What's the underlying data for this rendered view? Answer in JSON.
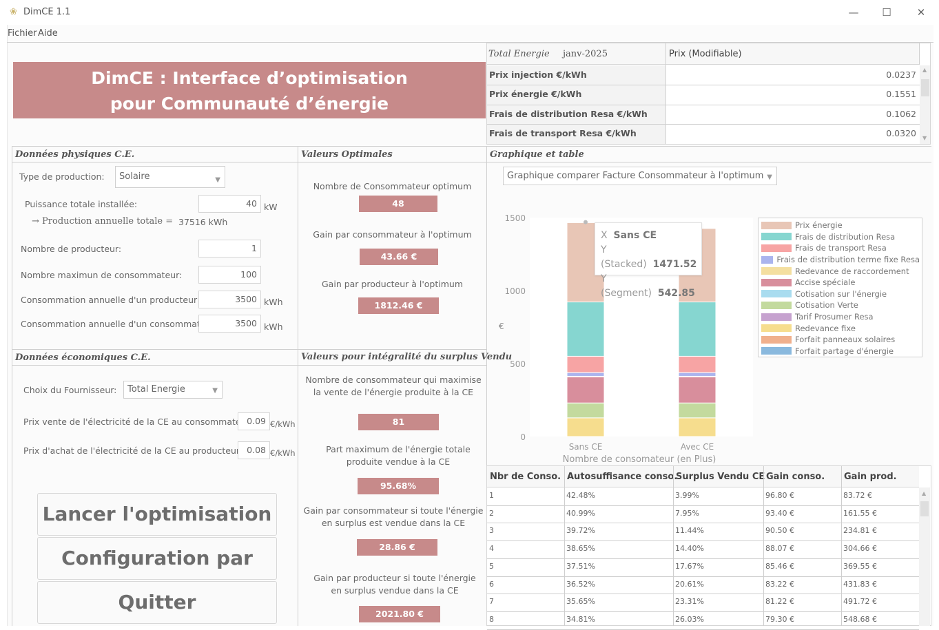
{
  "window": {
    "title": "DimCE 1.1",
    "minimize": "—",
    "maximize": "☐",
    "close": "✕"
  },
  "menu": {
    "file": "Fichier",
    "help": "Aide"
  },
  "banner": {
    "line1": "DimCE : Interface d’optimisation",
    "line2": "pour Communauté d’énergie"
  },
  "prices": {
    "col1_header": "Total Energie",
    "col1_date": "janv-2025",
    "col2_header": "Prix (Modifiable)",
    "rows": [
      {
        "label": "Prix injection €/kWh",
        "value": "0.0237"
      },
      {
        "label": "Prix énergie €/kWh",
        "value": "0.1551"
      },
      {
        "label": "Frais de distribution Resa €/kWh",
        "value": "0.1062"
      },
      {
        "label": "Frais de transport Resa €/kWh",
        "value": "0.0320"
      }
    ]
  },
  "physical": {
    "title": "Données physiques C.E.",
    "prod_type_label": "Type de production:",
    "prod_type_value": "Solaire",
    "power_label": "Puissance totale installée:",
    "power_value": "40",
    "power_unit": "kW",
    "production_text": "→  Production  annuelle  totale  =",
    "production_value": "37516 kWh",
    "producers_label": "Nombre de producteur:",
    "producers_value": "1",
    "max_consumers_label": "Nombre maximun de consommateur:",
    "max_consumers_value": "100",
    "prod_consumption_label": "Consommation annuelle d'un producteur :",
    "prod_consumption_value": "3500",
    "cons_consumption_label": "Consommation annuelle d'un consommateur:",
    "cons_consumption_value": "3500",
    "kwh": "kWh"
  },
  "economic": {
    "title": "Données économiques C.E.",
    "supplier_label": "Choix du Fournisseur:",
    "supplier_value": "Total Energie",
    "sell_price_label": "Prix vente de l'électricité de la CE au consommateur:",
    "sell_price_value": "0.09",
    "buy_price_label": "Prix d'achat de l'électricité de la CE au producteur:",
    "buy_price_value": "0.08",
    "unit": "€/kWh"
  },
  "buttons": {
    "run": "Lancer l'optimisation",
    "default": "Configuration par défaut",
    "quit": "Quitter"
  },
  "optimal": {
    "title": "Valeurs Optimales",
    "n_label": "Nombre de Consommateur optimum",
    "n_value": "48",
    "gain_cons_label": "Gain par consommateur à l'optimum",
    "gain_cons_value": "43.66 €",
    "gain_prod_label": "Gain par producteur à l'optimum",
    "gain_prod_value": "1812.46 €"
  },
  "surplus": {
    "title": "Valeurs pour intégralité du surplus Vendu",
    "n_label1": "Nombre de consommateur qui maximise",
    "n_label2": "la vente de l'énergie produite à la CE",
    "n_value": "81",
    "part_label1": "Part maximum de l'énergie totale",
    "part_label2": "produite vendue à la CE",
    "part_value": "95.68%",
    "gc_label1": "Gain par consommateur si toute l'énergie",
    "gc_label2": "en surplus est vendue dans la CE",
    "gc_value": "28.86 €",
    "gp_label1": "Gain par producteur si toute l'énergie",
    "gp_label2": "en surplus vendue dans la CE",
    "gp_value": "2021.80 €"
  },
  "graph": {
    "title": "Graphique et table",
    "select_value": "Graphique comparer Facture Consommateur à l'optimum"
  },
  "tooltip": {
    "x_label": "X",
    "x_value": "Sans CE",
    "y1_label": "Y (Stacked)",
    "y1_value": "1471.52",
    "y2_label": "Y (Segment)",
    "y2_value": "542.85"
  },
  "chart_data": {
    "type": "bar",
    "stacked": true,
    "categories": [
      "Sans CE",
      "Avec CE"
    ],
    "xlabel": "Nombre de consomateur (en Plus)",
    "ylabel": "€",
    "ylim": [
      0,
      1500
    ],
    "yticks": [
      "0",
      "500",
      "1000",
      "1500"
    ],
    "legend_position": "right",
    "series": [
      {
        "name": "Tarif Prosumer Resa",
        "color": "#c6a2cf",
        "values": [
          0,
          0
        ]
      },
      {
        "name": "Redevance fixe",
        "color": "#f6dd8e",
        "values": [
          128,
          128
        ]
      },
      {
        "name": "Cotisation Verte",
        "color": "#c3da9e",
        "values": [
          102,
          102
        ]
      },
      {
        "name": "Accise spéciale",
        "color": "#d88e9c",
        "values": [
          178,
          178
        ]
      },
      {
        "name": "Redevance de raccordement",
        "color": "#f4dfa0",
        "values": [
          5,
          5
        ]
      },
      {
        "name": "Frais de distribution terme fixe Resa",
        "color": "#aab4ee",
        "values": [
          25,
          25
        ]
      },
      {
        "name": "Frais de transport Resa",
        "color": "#f7a4a4",
        "values": [
          112,
          112
        ]
      },
      {
        "name": "Frais de distribution Resa",
        "color": "#86d6d0",
        "values": [
          372,
          372
        ]
      },
      {
        "name": "Prix énergie",
        "color": "#e8c6b6",
        "values": [
          542.85,
          504
        ]
      },
      {
        "name": "Cotisation sur l'énergie",
        "color": "#a9dcef",
        "values": [
          4,
          4
        ]
      },
      {
        "name": "Forfait panneaux solaires",
        "color": "#f0b08d",
        "values": [
          0,
          0
        ]
      },
      {
        "name": "Forfait partage d'énergie",
        "color": "#8ab9de",
        "values": [
          0,
          0
        ]
      }
    ],
    "legend": [
      "Prix énergie",
      "Frais de distribution Resa",
      "Frais de transport Resa",
      "Frais de distribution terme fixe Resa",
      "Redevance de raccordement",
      "Accise spéciale",
      "Cotisation sur l'énergie",
      "Cotisation Verte",
      "Tarif Prosumer Resa",
      "Redevance fixe",
      "Forfait panneaux solaires",
      "Forfait partage d'énergie"
    ]
  },
  "table": {
    "headers": [
      "Nbr de Conso.",
      "Autosuffisance conso.",
      "Surplus Vendu CE",
      "Gain conso.",
      "Gain prod."
    ],
    "rows": [
      [
        "1",
        "42.48%",
        "3.99%",
        "96.80 €",
        "83.72 €"
      ],
      [
        "2",
        "40.99%",
        "7.95%",
        "93.40 €",
        "161.55 €"
      ],
      [
        "3",
        "39.72%",
        "11.44%",
        "90.50 €",
        "234.81 €"
      ],
      [
        "4",
        "38.65%",
        "14.40%",
        "88.07 €",
        "304.66 €"
      ],
      [
        "5",
        "37.51%",
        "17.67%",
        "85.46 €",
        "369.55 €"
      ],
      [
        "6",
        "36.52%",
        "20.61%",
        "83.22 €",
        "431.83 €"
      ],
      [
        "7",
        "35.65%",
        "23.31%",
        "81.22 €",
        "491.72 €"
      ],
      [
        "8",
        "34.81%",
        "26.03%",
        "79.30 €",
        "548.68 €"
      ]
    ]
  }
}
